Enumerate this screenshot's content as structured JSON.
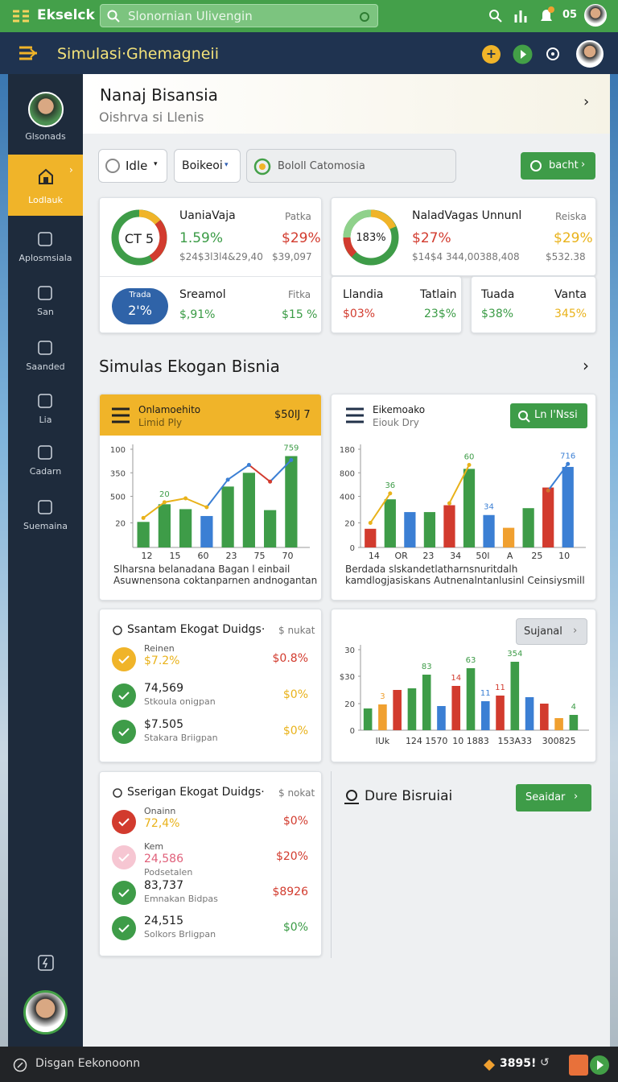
{
  "top_bar": {
    "app_name": "Ekselck",
    "search": "Slonornian Ulivengin",
    "badge": "05"
  },
  "header": {
    "title": "Simulasi·Ghemagneii"
  },
  "sidebar": {
    "profile": "Glsonads",
    "items": [
      "Lodlauk",
      "Aplosmsiala",
      "San",
      "Saanded",
      "Lia",
      "Cadarn",
      "Suemaina"
    ]
  },
  "hero": {
    "title": "Nanaj Bisansia",
    "subtitle": "Oishrva si Llenis"
  },
  "filters": {
    "select1": "Idle",
    "select2": "Boikeoi",
    "search": "Bololl Catomosia",
    "button": "bacht"
  },
  "stats": [
    {
      "donut": "CT 5",
      "name": "UaniaVaja",
      "label2": "Patka",
      "value1": "1.59%",
      "value2": "$29%",
      "sub1": "$24$3l3l4&29,40",
      "sub2": "$39,097"
    },
    {
      "donut": "183%",
      "name": "NaladVagas Unnunl",
      "label2": "Reiska",
      "value1": "$27%",
      "value2": "$29%",
      "sub1": "$14$4 344,00388,408",
      "sub2": "$532.38"
    }
  ],
  "stats_lower": {
    "pill_top": "Trada",
    "pill_value": "2'%",
    "name": "Sreamol",
    "label2": "Fitka",
    "value1": "$,91%",
    "value2": "$15 %",
    "cells": [
      {
        "name": "Llandia",
        "value": "$03%"
      },
      {
        "name": "Tatlain",
        "value": "23$%"
      },
      {
        "name": "Tuada",
        "value": "$38%"
      },
      {
        "name": "Vanta",
        "value": "345%"
      }
    ]
  },
  "section_title": "Simulas Ekogan Bisnia",
  "charts": [
    {
      "title": "Onlamoehito",
      "subtitle": "Limid Ply",
      "badge": "$50lJ 7",
      "ylim": [
        0,
        100
      ],
      "yticks": [
        100,
        {
          "value": 76,
          "label": "350"
        },
        {
          "value": 52,
          "label": "500"
        },
        {
          "value": 25,
          "label": "20"
        }
      ],
      "xlabels": [
        "12",
        "15",
        "60",
        "23",
        "75",
        "70"
      ],
      "bars": [
        26,
        44,
        39,
        32,
        62,
        76,
        38,
        93
      ],
      "colors": [
        "#3e9c48",
        "#3e9c48",
        "#3e9c48",
        "#3b7fd4",
        "#3e9c48",
        "#3e9c48",
        "#3e9c48",
        "#3e9c48"
      ],
      "line": [
        30,
        46,
        50,
        41,
        69,
        84,
        67,
        89
      ],
      "line_colors": [
        "#e9b21a",
        "#e9b21a",
        "#e9b21a",
        "#e9b21a",
        "#3b7fd4",
        "#3b7fd4",
        "#d23b2e",
        "#3b7fd4"
      ],
      "annotations": [
        "20",
        "759"
      ],
      "caption": [
        "Slharsna belanadana Bagan l einbail",
        "Asuwnensona coktanparnen andnogantan"
      ]
    },
    {
      "title": "Eikemoako",
      "subtitle": "Eiouk Dry",
      "button": "Ln l'Nssi",
      "ylim": [
        0,
        100
      ],
      "yticks": [
        {
          "value": 100,
          "label": "180"
        },
        {
          "value": 76,
          "label": "800"
        },
        {
          "value": 52,
          "label": "400"
        },
        {
          "value": 25,
          "label": "20"
        },
        0
      ],
      "xlabels": [
        "14",
        "OR",
        "23",
        "34",
        "50l",
        "A",
        "25",
        "10"
      ],
      "bars": [
        19,
        49,
        36,
        36,
        43,
        80,
        33,
        20,
        40,
        61,
        82
      ],
      "colors": [
        "#d23b2e",
        "#3e9c48",
        "#3b7fd4",
        "#3e9c48",
        "#d23b2e",
        "#3e9c48",
        "#3b7fd4",
        "#f0a030",
        "#3e9c48",
        "#d23b2e",
        "#3b7fd4"
      ],
      "line": [
        25,
        55,
        null,
        null,
        45,
        84,
        null,
        null,
        null,
        58,
        85
      ],
      "line_colors": [
        "#e9b21a",
        "#e9b21a",
        "#e9b21a",
        "#e9b21a",
        "#e9b21a",
        "#e9b21a",
        "#e9b21a",
        "#e9b21a",
        "#e9b21a",
        "#d2742e",
        "#3b7fd4"
      ],
      "annotations": [
        "36",
        "60",
        "34",
        "716"
      ],
      "caption": [
        "Berdada slskandetlatharnsnuritdalh",
        "kamdlogjasiskans Autnenalntanlusinl Ceinsiysmill"
      ]
    },
    {
      "button": "Sujanal",
      "ylim": [
        0,
        100
      ],
      "yticks": [
        {
          "value": 100,
          "label": "30"
        },
        {
          "value": 67,
          "label": "$30"
        },
        {
          "value": 33,
          "label": "20"
        },
        0
      ],
      "xlabels": [
        "lUk",
        "124 1570",
        "10 1883",
        "153A33",
        "300825"
      ],
      "bars": [
        27,
        32,
        50,
        52,
        69,
        30,
        55,
        77,
        36,
        43,
        85,
        41,
        33,
        15,
        19
      ],
      "colors": [
        "#3e9c48",
        "#f0a030",
        "#d23b2e",
        "#3e9c48",
        "#3e9c48",
        "#3b7fd4",
        "#d23b2e",
        "#3e9c48",
        "#3b7fd4",
        "#d23b2e",
        "#3e9c48",
        "#3b7fd4",
        "#d23b2e",
        "#f0a030",
        "#3e9c48"
      ],
      "annotations": [
        "3",
        "83",
        "14",
        "63",
        "11",
        "11",
        "354",
        "4"
      ]
    }
  ],
  "lists": [
    {
      "title": "Ssantam Ekogat Duidgs·",
      "meta": "$ nukat",
      "items": [
        {
          "label": "Reinen",
          "value": "$7.2%",
          "right": "$0.8%"
        },
        {
          "value": "74,569",
          "label": "Stkoula onigpan",
          "right": "$0%"
        },
        {
          "value": "$7.505",
          "label": "Stakara Briigpan",
          "right": "$0%"
        }
      ]
    },
    {
      "title": "Sserigan Ekogat Duidgs·",
      "meta": "$ nokat",
      "items": [
        {
          "label": "Onainn",
          "value": "72,4%",
          "right": "$0%"
        },
        {
          "label": "Kem",
          "value": "24,586",
          "sub": "Podsetalen",
          "right": "$20%"
        },
        {
          "value": "83,737",
          "label": "Emnakan Bidpas",
          "right": "$8926"
        },
        {
          "value": "24,515",
          "label": "Solkors Brligpan",
          "right": "$0%"
        }
      ]
    }
  ],
  "panel": {
    "title": "Dure Bisruiai",
    "button": "Seaidar"
  },
  "bottom_bar": {
    "title": "Disgan Eekonoonn",
    "value": "3895!"
  }
}
